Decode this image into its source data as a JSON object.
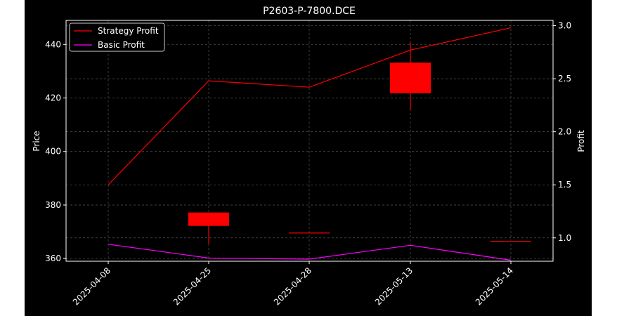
{
  "chart_data": {
    "type": "candlestick+line",
    "title": "P2603-P-7800.DCE",
    "ylabel": "Price",
    "y2label": "Profit",
    "categories": [
      "2025-04-08",
      "2025-04-25",
      "2025-04-28",
      "2025-05-13",
      "2025-05-14"
    ],
    "ylim": [
      359,
      449
    ],
    "y2lim": [
      0.78,
      3.05
    ],
    "yticks": [
      360,
      380,
      400,
      420,
      440
    ],
    "y2ticks": [
      1.0,
      1.5,
      2.0,
      2.5,
      3.0
    ],
    "y2ticklabels": [
      "1.0",
      "1.5",
      "2.0",
      "2.5",
      "3.0"
    ],
    "grid": true,
    "legend_position": "top-left",
    "candles": [
      {
        "date": "2025-04-08",
        "open": null,
        "high": null,
        "low": null,
        "close": null
      },
      {
        "date": "2025-04-25",
        "open": 377.2,
        "high": 377.2,
        "low": 365.6,
        "close": 372.2
      },
      {
        "date": "2025-04-28",
        "open": 369.7,
        "high": 369.7,
        "low": 369.7,
        "close": 369.7
      },
      {
        "date": "2025-05-13",
        "open": 433.2,
        "high": 441.0,
        "low": 415.6,
        "close": 421.8
      },
      {
        "date": "2025-05-14",
        "open": 366.6,
        "high": 366.6,
        "low": 366.6,
        "close": 366.6
      }
    ],
    "series": [
      {
        "name": "Strategy Profit",
        "axis": "right",
        "color": "#ff0000",
        "values": [
          1.5,
          2.48,
          2.42,
          2.77,
          2.98
        ]
      },
      {
        "name": "Basic Profit",
        "axis": "right",
        "color": "#ff00ff",
        "values": [
          0.94,
          0.81,
          0.8,
          0.93,
          0.79
        ]
      }
    ],
    "candle_color": "#ff0000"
  }
}
